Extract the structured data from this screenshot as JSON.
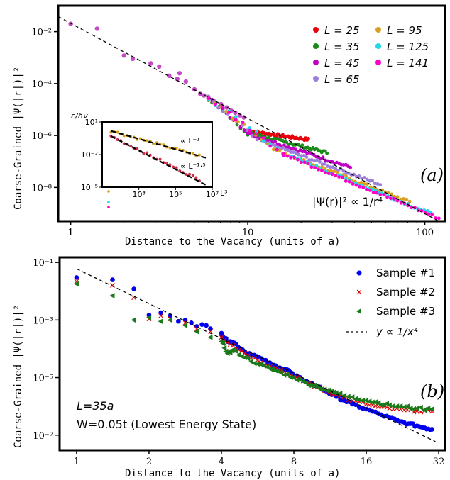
{
  "chart_data": [
    {
      "type": "scatter",
      "panel_label": "(a)",
      "xlabel": "Distance to the Vacancy (units of a)",
      "ylabel": "Coarse-Grained |Ψ(|r|)|²",
      "xscale": "log",
      "yscale": "log",
      "xlim": [
        0.85,
        130
      ],
      "ylim": [
        5e-10,
        0.1
      ],
      "xticks": [
        {
          "v": 1,
          "label": "1"
        },
        {
          "v": 10,
          "label": "10"
        },
        {
          "v": 100,
          "label": "100"
        }
      ],
      "yticks": [
        {
          "v": 0.01,
          "label": "10⁻²"
        },
        {
          "v": 0.0001,
          "label": "10⁻⁴"
        },
        {
          "v": 1e-06,
          "label": "10⁻⁶"
        },
        {
          "v": 1e-08,
          "label": "10⁻⁸"
        }
      ],
      "legend_position": "top-right",
      "series": [
        {
          "name": "L = 25",
          "color": "#e8000b",
          "tail_start": 10,
          "tail_end": 22,
          "tail_y0": 1.5e-06,
          "tail_y1": 7e-07
        },
        {
          "name": "L = 35",
          "color": "#1a8a1a",
          "tail_start": 10,
          "tail_end": 28,
          "tail_y0": 1.3e-06,
          "tail_y1": 2.2e-07
        },
        {
          "name": "L = 45",
          "color": "#c000c0",
          "tail_start": 10,
          "tail_end": 38,
          "tail_y0": 1.2e-06,
          "tail_y1": 6e-08
        },
        {
          "name": "L = 65",
          "color": "#9b7fdb",
          "tail_start": 12,
          "tail_end": 56,
          "tail_y0": 6e-07,
          "tail_y1": 1.3e-08
        },
        {
          "name": "L = 95",
          "color": "#d9a020",
          "tail_start": 14,
          "tail_end": 82,
          "tail_y0": 3e-07,
          "tail_y1": 2.8e-09
        },
        {
          "name": "L = 125",
          "color": "#20d8e8",
          "tail_start": 16,
          "tail_end": 108,
          "tail_y0": 2e-07,
          "tail_y1": 1e-09
        },
        {
          "name": "L = 141",
          "color": "#ff00c8",
          "tail_start": 16,
          "tail_end": 120,
          "tail_y0": 1.9e-07,
          "tail_y1": 6.5e-10
        }
      ],
      "early_points": [
        {
          "x": 1.0,
          "y": 0.02
        },
        {
          "x": 1.41,
          "y": 0.013
        },
        {
          "x": 2.0,
          "y": 0.0012
        },
        {
          "x": 2.24,
          "y": 0.0009
        },
        {
          "x": 2.83,
          "y": 0.0006
        },
        {
          "x": 3.16,
          "y": 0.00045
        },
        {
          "x": 3.6,
          "y": 0.0002
        },
        {
          "x": 4.0,
          "y": 0.00015
        },
        {
          "x": 4.12,
          "y": 0.00025
        },
        {
          "x": 4.47,
          "y": 0.00012
        },
        {
          "x": 5.0,
          "y": 6e-05
        },
        {
          "x": 5.39,
          "y": 4e-05
        },
        {
          "x": 5.66,
          "y": 3.5e-05
        },
        {
          "x": 6.0,
          "y": 2.8e-05
        },
        {
          "x": 6.4,
          "y": 2.2e-05
        },
        {
          "x": 7.07,
          "y": 1.6e-05
        },
        {
          "x": 7.6,
          "y": 1.2e-05
        },
        {
          "x": 8.06,
          "y": 9e-06
        },
        {
          "x": 8.5,
          "y": 7.5e-06
        },
        {
          "x": 9.0,
          "y": 6e-06
        },
        {
          "x": 9.5,
          "y": 5e-06
        }
      ],
      "fit_line": {
        "label": "|Ψ(r)|² ∝ 1/r⁴",
        "x0": 0.85,
        "y0": 0.038,
        "x1": 120,
        "y1": 5e-10
      },
      "inset": {
        "ylabel": "ε/ħv",
        "xlabel": "L³",
        "xscale": "log",
        "yscale": "log",
        "xlim": [
          10,
          10000000.0
        ],
        "ylim": [
          1e-05,
          10
        ],
        "xticks": [
          {
            "v": 1000,
            "label": "10³"
          },
          {
            "v": 100000,
            "label": "10⁵"
          },
          {
            "v": 10000000,
            "label": "10⁷"
          }
        ],
        "yticks": [
          {
            "v": 10,
            "label": "10¹"
          },
          {
            "v": 0.01,
            "label": "10⁻²"
          },
          {
            "v": 1e-05,
            "label": "10⁻⁵"
          }
        ],
        "series": [
          {
            "name": "∝ L⁻¹",
            "color": "#d9a020",
            "x0": 30,
            "y0": 1.5,
            "x1": 2000000.0,
            "y1": 0.008
          },
          {
            "name": "∝ L⁻¹·⁵",
            "color": "#d0304a",
            "x0": 30,
            "y0": 0.5,
            "x1": 2000000.0,
            "y1": 5e-05
          }
        ],
        "line_labels": [
          "∝ L⁻¹",
          "∝ L⁻¹·⁵"
        ]
      }
    },
    {
      "type": "scatter",
      "panel_label": "(b)",
      "xlabel": "Distance to the Vacancy (units of a)",
      "ylabel": "Coarse-Grained |Ψ(|r|)|²",
      "xscale": "log",
      "yscale": "log",
      "xlim": [
        0.85,
        34
      ],
      "ylim": [
        3e-08,
        0.15
      ],
      "xticks": [
        {
          "v": 1,
          "label": "1"
        },
        {
          "v": 2,
          "label": "2"
        },
        {
          "v": 4,
          "label": "4"
        },
        {
          "v": 8,
          "label": "8"
        },
        {
          "v": 16,
          "label": "16"
        },
        {
          "v": 32,
          "label": "32"
        }
      ],
      "yticks": [
        {
          "v": 0.1,
          "label": "10⁻¹"
        },
        {
          "v": 0.001,
          "label": "10⁻³"
        },
        {
          "v": 1e-05,
          "label": "10⁻⁵"
        },
        {
          "v": 1e-07,
          "label": "10⁻⁷"
        }
      ],
      "legend_position": "top-right",
      "series": [
        {
          "name": "Sample #1",
          "color": "#0000ee",
          "marker": "circle",
          "points": [
            {
              "x": 1,
              "y": 0.03
            },
            {
              "x": 1.41,
              "y": 0.025
            },
            {
              "x": 1.73,
              "y": 0.012
            },
            {
              "x": 2.0,
              "y": 0.0015
            },
            {
              "x": 2.24,
              "y": 0.0018
            },
            {
              "x": 2.45,
              "y": 0.0014
            },
            {
              "x": 2.65,
              "y": 0.0009
            },
            {
              "x": 2.83,
              "y": 0.001
            },
            {
              "x": 3.0,
              "y": 0.0008
            },
            {
              "x": 3.16,
              "y": 0.0006
            },
            {
              "x": 3.32,
              "y": 0.0007
            },
            {
              "x": 3.46,
              "y": 0.00065
            },
            {
              "x": 3.6,
              "y": 0.0005
            },
            {
              "x": 4.0,
              "y": 0.00035
            },
            {
              "x": 4.12,
              "y": 0.00022
            },
            {
              "x": 4.36,
              "y": 0.00018
            },
            {
              "x": 4.58,
              "y": 0.00015
            },
            {
              "x": 5.0,
              "y": 8e-05
            },
            {
              "x": 5.48,
              "y": 6e-05
            },
            {
              "x": 6.0,
              "y": 4e-05
            },
            {
              "x": 6.48,
              "y": 2.8e-05
            },
            {
              "x": 7.0,
              "y": 2.2e-05
            },
            {
              "x": 7.5,
              "y": 1.9e-05
            },
            {
              "x": 8.0,
              "y": 1.2e-05
            },
            {
              "x": 9.0,
              "y": 7.5e-06
            },
            {
              "x": 10.0,
              "y": 5e-06
            },
            {
              "x": 11.0,
              "y": 3.2e-06
            },
            {
              "x": 12.0,
              "y": 2.2e-06
            },
            {
              "x": 13.0,
              "y": 1.6e-06
            },
            {
              "x": 14.0,
              "y": 1.2e-06
            },
            {
              "x": 16.0,
              "y": 8e-07
            },
            {
              "x": 18.0,
              "y": 5.5e-07
            },
            {
              "x": 20.0,
              "y": 4e-07
            },
            {
              "x": 22.0,
              "y": 3e-07
            },
            {
              "x": 24.0,
              "y": 2.5e-07
            },
            {
              "x": 26.0,
              "y": 2.1e-07
            },
            {
              "x": 28.0,
              "y": 1.8e-07
            },
            {
              "x": 30.0,
              "y": 1.6e-07
            }
          ]
        },
        {
          "name": "Sample #2",
          "color": "#e00000",
          "marker": "x",
          "points": [
            {
              "x": 1,
              "y": 0.022
            },
            {
              "x": 1.41,
              "y": 0.016
            },
            {
              "x": 1.73,
              "y": 0.006
            },
            {
              "x": 2.0,
              "y": 0.0011
            },
            {
              "x": 2.24,
              "y": 0.0014
            },
            {
              "x": 2.45,
              "y": 0.0011
            },
            {
              "x": 2.83,
              "y": 0.0008
            },
            {
              "x": 3.16,
              "y": 0.0005
            },
            {
              "x": 3.6,
              "y": 0.0004
            },
            {
              "x": 4.0,
              "y": 0.00025
            },
            {
              "x": 4.47,
              "y": 0.00013
            },
            {
              "x": 5.0,
              "y": 7e-05
            },
            {
              "x": 5.66,
              "y": 4e-05
            },
            {
              "x": 6.4,
              "y": 2.5e-05
            },
            {
              "x": 7.07,
              "y": 1.8e-05
            },
            {
              "x": 8.0,
              "y": 1.1e-05
            },
            {
              "x": 9.0,
              "y": 7e-06
            },
            {
              "x": 10.0,
              "y": 4.8e-06
            },
            {
              "x": 11.0,
              "y": 3.5e-06
            },
            {
              "x": 12.0,
              "y": 2.6e-06
            },
            {
              "x": 14.0,
              "y": 1.6e-06
            },
            {
              "x": 16.0,
              "y": 1.2e-06
            },
            {
              "x": 18.0,
              "y": 9.8e-07
            },
            {
              "x": 20.0,
              "y": 8.5e-07
            },
            {
              "x": 23.0,
              "y": 7.5e-07
            },
            {
              "x": 26.0,
              "y": 7e-07
            },
            {
              "x": 30.0,
              "y": 6.8e-07
            }
          ]
        },
        {
          "name": "Sample #3",
          "color": "#1a7a1a",
          "marker": "triangle-left",
          "points": [
            {
              "x": 1,
              "y": 0.018
            },
            {
              "x": 1.41,
              "y": 0.007
            },
            {
              "x": 1.73,
              "y": 0.001
            },
            {
              "x": 2.0,
              "y": 0.0012
            },
            {
              "x": 2.24,
              "y": 0.0009
            },
            {
              "x": 2.45,
              "y": 0.001
            },
            {
              "x": 2.83,
              "y": 0.00065
            },
            {
              "x": 3.16,
              "y": 0.0004
            },
            {
              "x": 3.6,
              "y": 0.00025
            },
            {
              "x": 4.0,
              "y": 0.00018
            },
            {
              "x": 4.24,
              "y": 7e-05
            },
            {
              "x": 4.47,
              "y": 9e-05
            },
            {
              "x": 5.0,
              "y": 5e-05
            },
            {
              "x": 5.66,
              "y": 3e-05
            },
            {
              "x": 6.4,
              "y": 2e-05
            },
            {
              "x": 7.07,
              "y": 1.5e-05
            },
            {
              "x": 8.0,
              "y": 1e-05
            },
            {
              "x": 9.0,
              "y": 6.5e-06
            },
            {
              "x": 10.0,
              "y": 4.8e-06
            },
            {
              "x": 11.0,
              "y": 3.6e-06
            },
            {
              "x": 12.0,
              "y": 2.9e-06
            },
            {
              "x": 14.0,
              "y": 2.1e-06
            },
            {
              "x": 16.0,
              "y": 1.6e-06
            },
            {
              "x": 18.0,
              "y": 1.3e-06
            },
            {
              "x": 20.0,
              "y": 1.1e-06
            },
            {
              "x": 23.0,
              "y": 9.5e-07
            },
            {
              "x": 26.0,
              "y": 8.5e-07
            },
            {
              "x": 30.0,
              "y": 8e-07
            }
          ]
        }
      ],
      "fit_line": {
        "label": "y ∝ 1/x⁴",
        "x0": 1,
        "y0": 0.06,
        "x1": 31,
        "y1": 6e-08
      },
      "annotations": [
        "L=35a",
        "W=0.05t (Lowest Energy State)"
      ]
    }
  ]
}
